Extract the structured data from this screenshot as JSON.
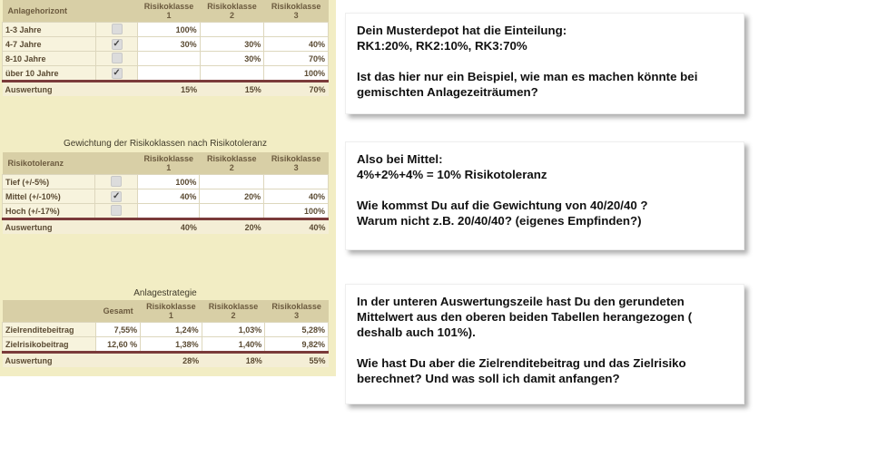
{
  "tables": {
    "horizon": {
      "header": [
        "Anlagehorizont",
        "",
        "Risikoklasse 1",
        "Risikoklasse 2",
        "Risikoklasse 3"
      ],
      "rows": [
        {
          "label": "1-3 Jahre",
          "checked": false,
          "rk1": "100%",
          "rk2": "",
          "rk3": ""
        },
        {
          "label": "4-7 Jahre",
          "checked": true,
          "rk1": "30%",
          "rk2": "30%",
          "rk3": "40%"
        },
        {
          "label": "8-10 Jahre",
          "checked": false,
          "rk1": "",
          "rk2": "30%",
          "rk3": "70%"
        },
        {
          "label": "über 10 Jahre",
          "checked": true,
          "rk1": "",
          "rk2": "",
          "rk3": "100%"
        }
      ],
      "summary": {
        "label": "Auswertung",
        "rk1": "15%",
        "rk2": "15%",
        "rk3": "70%"
      }
    },
    "tolerance": {
      "title": "Gewichtung der Risikoklassen nach Risikotoleranz",
      "header": [
        "Risikotoleranz",
        "",
        "Risikoklasse 1",
        "Risikoklasse 2",
        "Risikoklasse 3"
      ],
      "rows": [
        {
          "label": "Tief (+/-5%)",
          "checked": false,
          "rk1": "100%",
          "rk2": "",
          "rk3": ""
        },
        {
          "label": "Mittel (+/-10%)",
          "checked": true,
          "rk1": "40%",
          "rk2": "20%",
          "rk3": "40%"
        },
        {
          "label": "Hoch (+/-17%)",
          "checked": false,
          "rk1": "",
          "rk2": "",
          "rk3": "100%"
        }
      ],
      "summary": {
        "label": "Auswertung",
        "rk1": "40%",
        "rk2": "20%",
        "rk3": "40%"
      }
    },
    "strategy": {
      "title": "Anlagestrategie",
      "header": [
        "",
        "Gesamt",
        "Risikoklasse 1",
        "Risikoklasse 2",
        "Risikoklasse 3"
      ],
      "rows": [
        {
          "label": "Zielrenditebeitrag",
          "total": "7,55%",
          "rk1": "1,24%",
          "rk2": "1,03%",
          "rk3": "5,28%"
        },
        {
          "label": "Zielrisikobeitrag",
          "total": "12,60 %",
          "rk1": "1,38%",
          "rk2": "1,40%",
          "rk3": "9,82%"
        }
      ],
      "summary": {
        "label": "Auswertung",
        "rk1": "28%",
        "rk2": "18%",
        "rk3": "55%"
      }
    }
  },
  "notes": [
    {
      "lines": [
        "Dein Musterdepot hat die Einteilung:\nRK1:20%, RK2:10%, RK3:70%",
        "Ist das hier nur ein Beispiel, wie man es machen könnte bei gemischten Anlagezeiträumen?"
      ]
    },
    {
      "lines": [
        "Also bei Mittel:\n4%+2%+4% = 10% Risikotoleranz",
        "Wie kommst Du auf die Gewichtung von 40/20/40 ?\nWarum nicht z.B. 20/40/40? (eigenes Empfinden?)"
      ]
    },
    {
      "lines": [
        "In der unteren Auswertungszeile hast Du den gerundeten Mittelwert aus den oberen beiden Tabellen herangezogen ( deshalb auch 101%).",
        "Wie hast Du aber die Zielrenditebeitrag und das Zielrisiko berechnet? Und was soll ich damit anfangen?"
      ]
    }
  ]
}
